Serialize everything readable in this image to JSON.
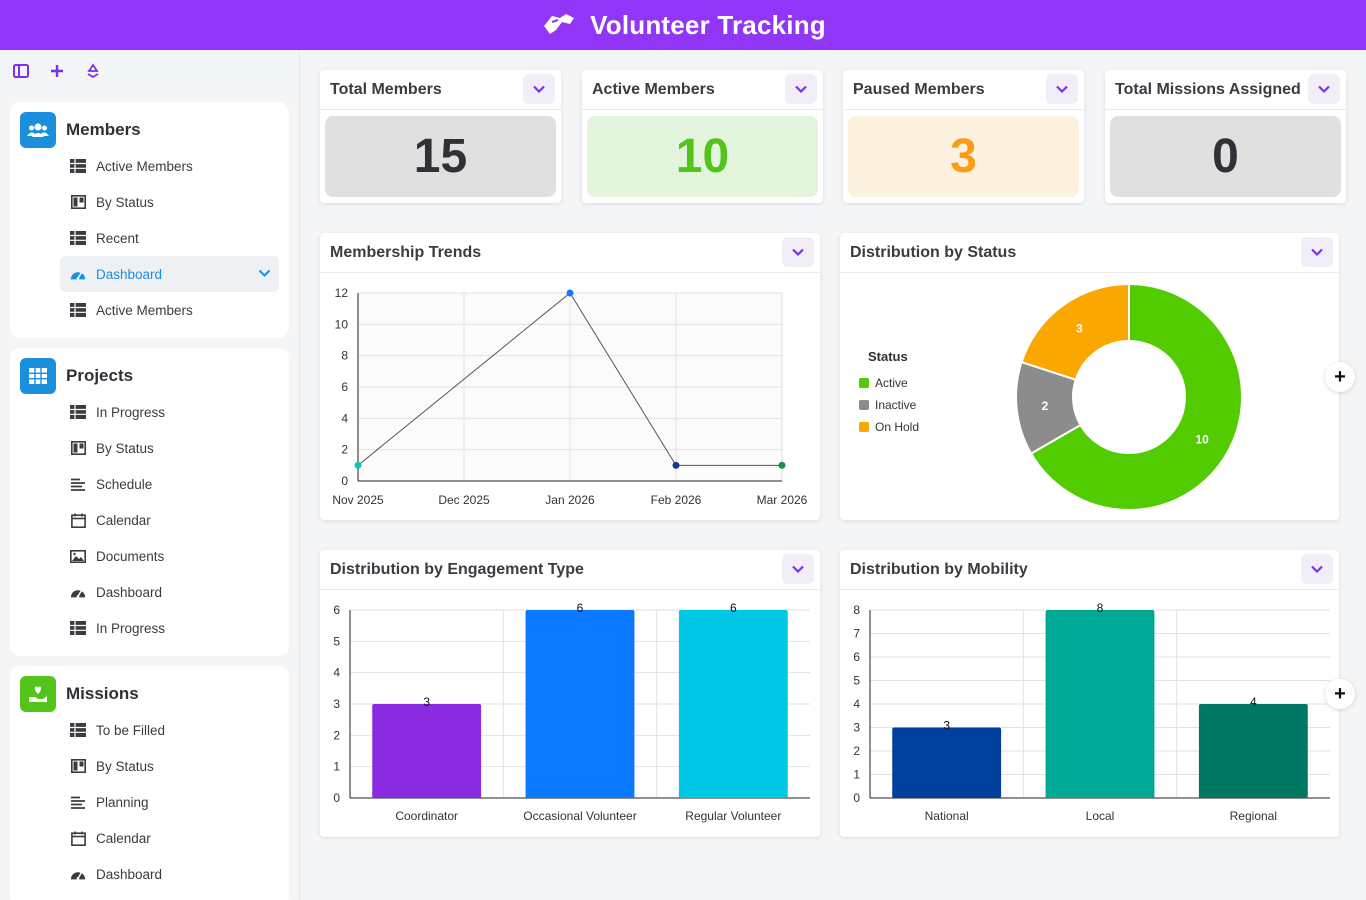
{
  "app": {
    "title": "Volunteer Tracking"
  },
  "colors": {
    "brand": "#9136f6",
    "members_icon": "#1a8fdc",
    "projects_icon": "#1a8fdc",
    "missions_icon": "#52c41a"
  },
  "sidebar": {
    "groups": [
      {
        "title": "Members",
        "icon": "users-icon",
        "items": [
          {
            "label": "Active Members",
            "icon": "table-icon"
          },
          {
            "label": "By Status",
            "icon": "kanban-icon"
          },
          {
            "label": "Recent",
            "icon": "table-icon"
          },
          {
            "label": "Dashboard",
            "icon": "dashboard-icon",
            "active": true
          },
          {
            "label": "Active Members",
            "icon": "table-icon"
          }
        ]
      },
      {
        "title": "Projects",
        "icon": "grid-icon",
        "items": [
          {
            "label": "In Progress",
            "icon": "table-icon"
          },
          {
            "label": "By Status",
            "icon": "kanban-icon"
          },
          {
            "label": "Schedule",
            "icon": "gantt-icon"
          },
          {
            "label": "Calendar",
            "icon": "calendar-icon"
          },
          {
            "label": "Documents",
            "icon": "image-icon"
          },
          {
            "label": "Dashboard",
            "icon": "dashboard-icon"
          },
          {
            "label": "In Progress",
            "icon": "table-icon"
          }
        ]
      },
      {
        "title": "Missions",
        "icon": "hand-heart-icon",
        "items": [
          {
            "label": "To be Filled",
            "icon": "table-icon"
          },
          {
            "label": "By Status",
            "icon": "kanban-icon"
          },
          {
            "label": "Planning",
            "icon": "gantt-icon"
          },
          {
            "label": "Calendar",
            "icon": "calendar-icon"
          },
          {
            "label": "Dashboard",
            "icon": "dashboard-icon"
          }
        ]
      }
    ]
  },
  "kpis": [
    {
      "title": "Total Members",
      "value": "15",
      "bg": "#e0e0e0",
      "fg": "#2f3137"
    },
    {
      "title": "Active Members",
      "value": "10",
      "bg": "#e3f5dc",
      "fg": "#52c41a"
    },
    {
      "title": "Paused Members",
      "value": "3",
      "bg": "#fdf1e0",
      "fg": "#fa9d14"
    },
    {
      "title": "Total Missions Assigned",
      "value": "0",
      "bg": "#e0e0e0",
      "fg": "#2f3137"
    }
  ],
  "panels": {
    "trends": "Membership Trends",
    "status": "Distribution by Status",
    "engagement": "Distribution by Engagement Type",
    "mobility": "Distribution by Mobility"
  },
  "chart_data": [
    {
      "type": "line",
      "title": "Membership Trends",
      "x": [
        "Nov 2025",
        "Dec 2025",
        "Jan 2026",
        "Feb 2026",
        "Mar 2026"
      ],
      "points": [
        {
          "x": "Nov 2025",
          "y": 1,
          "color": "#13c2c2"
        },
        {
          "x": "Jan 2026",
          "y": 12,
          "color": "#1677ff"
        },
        {
          "x": "Feb 2026",
          "y": 1,
          "color": "#0a3d8f"
        },
        {
          "x": "Mar 2026",
          "y": 1,
          "color": "#168f4a"
        }
      ],
      "ylim": [
        0,
        12
      ],
      "yticks": [
        0,
        2,
        4,
        6,
        8,
        10,
        12
      ],
      "grid": true
    },
    {
      "type": "pie",
      "title": "Distribution by Status",
      "legend_title": "Status",
      "legend_position": "left",
      "slices": [
        {
          "label": "Active",
          "value": 10,
          "color": "#52cc00"
        },
        {
          "label": "Inactive",
          "value": 2,
          "color": "#8c8c8c"
        },
        {
          "label": "On Hold",
          "value": 3,
          "color": "#faa700"
        }
      ]
    },
    {
      "type": "bar",
      "title": "Distribution by Engagement Type",
      "categories": [
        "Coordinator",
        "Occasional Volunteer",
        "Regular Volunteer"
      ],
      "values": [
        3,
        6,
        6
      ],
      "colors": [
        "#8a2be2",
        "#0a78ff",
        "#00c7e6"
      ],
      "ylim": [
        0,
        6
      ],
      "yticks": [
        0,
        1,
        2,
        3,
        4,
        5,
        6
      ],
      "grid": true
    },
    {
      "type": "bar",
      "title": "Distribution by Mobility",
      "categories": [
        "National",
        "Local",
        "Regional"
      ],
      "values": [
        3,
        8,
        4
      ],
      "colors": [
        "#003f9e",
        "#00a896",
        "#007863"
      ],
      "ylim": [
        0,
        8
      ],
      "yticks": [
        0,
        1,
        2,
        3,
        4,
        5,
        6,
        7,
        8
      ],
      "grid": true
    }
  ]
}
